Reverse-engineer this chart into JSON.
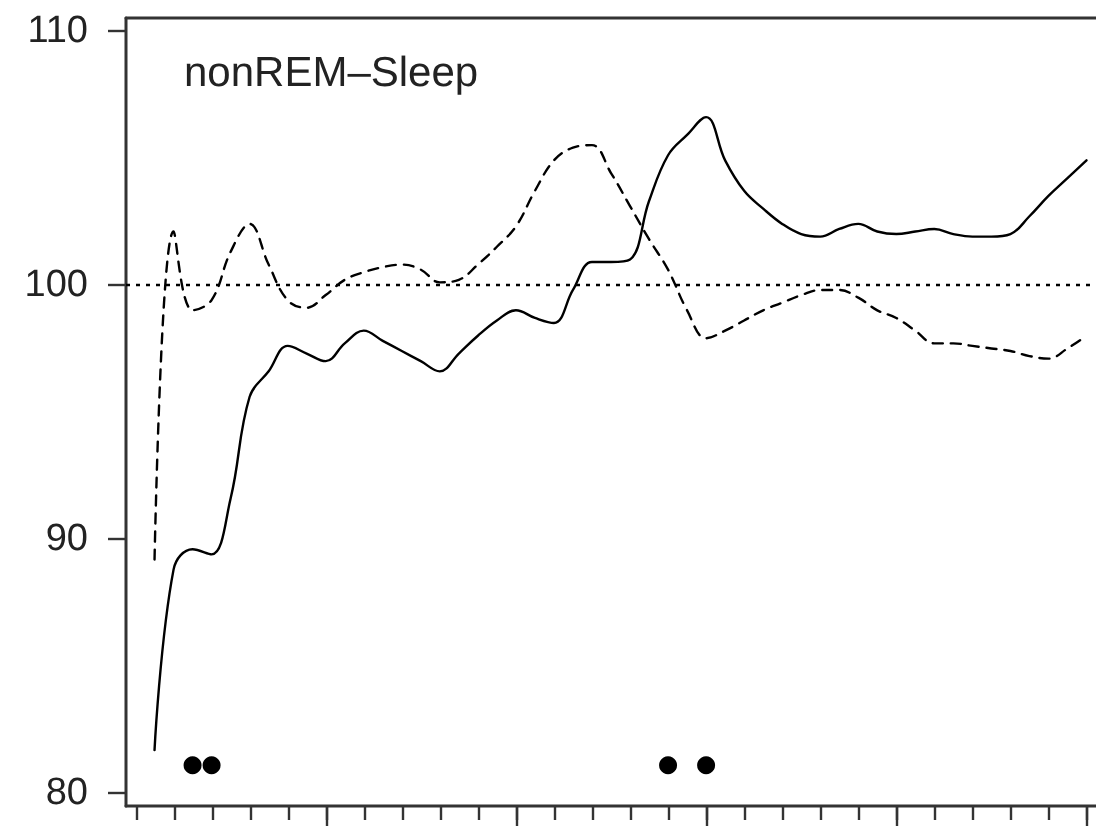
{
  "chart_data": {
    "type": "line",
    "title": "nonREM–Sleep",
    "categories": [
      null,
      null,
      null,
      null,
      null,
      null,
      null,
      null,
      null,
      null,
      null,
      null,
      null,
      null,
      null,
      null,
      null,
      null,
      null,
      null,
      null,
      null,
      null,
      null,
      null,
      null,
      null,
      null,
      null,
      null,
      null,
      null,
      null,
      null,
      null,
      null,
      null,
      null,
      null,
      null,
      null,
      null,
      null,
      null,
      null,
      null,
      null,
      null,
      null,
      null,
      null
    ],
    "ylim": [
      79.5,
      110.5
    ],
    "yticks": [
      80,
      90,
      100,
      110
    ],
    "tick_labels": "y",
    "series": [
      {
        "color": "#000000",
        "line_style": "solid",
        "values": [
          null,
          81.7,
          88.8,
          89.6,
          89.4,
          91.6,
          95.6,
          96.6,
          97.6,
          97.3,
          97.0,
          97.7,
          98.2,
          97.8,
          97.4,
          97.0,
          96.6,
          97.3,
          98.0,
          98.6,
          99.0,
          98.7,
          98.5,
          99.8,
          100.9,
          100.9,
          101.0,
          103.3,
          105.1,
          105.9,
          106.6,
          104.9,
          103.7,
          103.0,
          102.4,
          102.0,
          101.9,
          102.2,
          102.4,
          102.1,
          102.0,
          102.1,
          102.2,
          102.0,
          101.9,
          101.9,
          102.0,
          102.7,
          103.5,
          104.2,
          104.9
        ]
      },
      {
        "color": "#000000",
        "line_style": "dashed",
        "values": [
          null,
          89.2,
          102.1,
          99.0,
          99.4,
          101.3,
          102.4,
          100.8,
          99.4,
          99.1,
          99.6,
          100.2,
          100.5,
          100.7,
          100.8,
          100.6,
          100.1,
          100.2,
          100.8,
          101.5,
          102.3,
          103.7,
          104.9,
          105.4,
          105.5,
          104.4,
          103.1,
          101.8,
          100.6,
          99.0,
          97.9,
          98.2,
          98.6,
          99.0,
          99.3,
          99.6,
          99.8,
          99.8,
          99.5,
          99.0,
          98.7,
          98.2,
          97.7,
          97.7,
          97.6,
          97.5,
          97.4,
          97.2,
          97.1,
          97.5,
          98.0
        ]
      },
      {
        "type": "scatter",
        "color": "#000000",
        "marker": "circle",
        "values": [
          null,
          null,
          null,
          81.1,
          81.1,
          null,
          null,
          null,
          null,
          null,
          null,
          null,
          null,
          null,
          null,
          null,
          null,
          null,
          null,
          null,
          null,
          null,
          null,
          null,
          null,
          null,
          null,
          null,
          81.1,
          null,
          81.1,
          null,
          null,
          null,
          null,
          null,
          null,
          null,
          null,
          null,
          null,
          null,
          null,
          null,
          null,
          null,
          null,
          null,
          null,
          null,
          null
        ]
      }
    ],
    "ref_lines": [
      {
        "axis": "y",
        "value": 100,
        "color": "#000000",
        "line_style": "dotted"
      }
    ]
  }
}
